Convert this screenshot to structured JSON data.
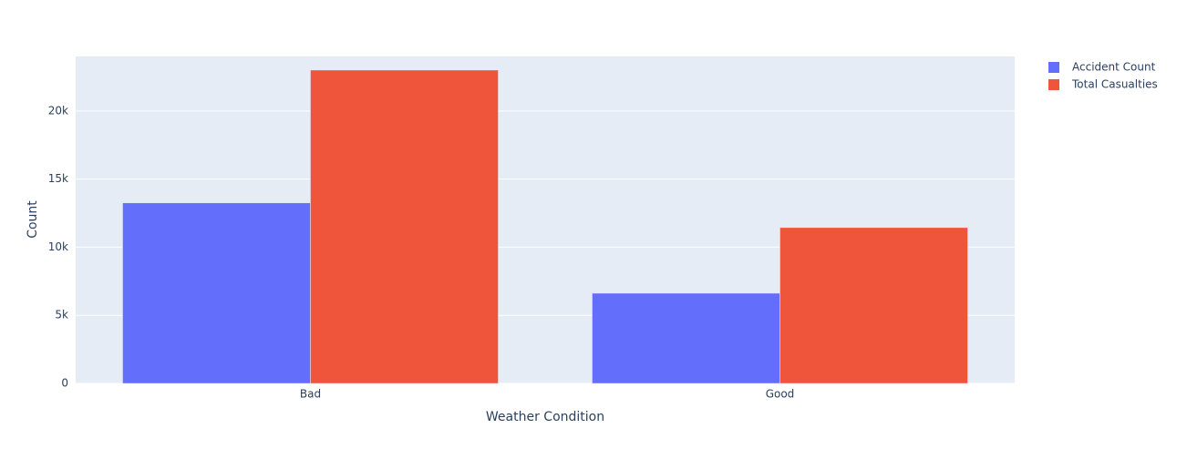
{
  "chart_data": {
    "type": "bar",
    "x_label": "Weather Condition",
    "y_label": "Count",
    "categories": [
      "Bad",
      "Good"
    ],
    "series": [
      {
        "name": "Accident Count",
        "color": "#636efa",
        "values": [
          13250,
          6620
        ]
      },
      {
        "name": "Total Casualties",
        "color": "#ef553b",
        "values": [
          23000,
          11440
        ]
      }
    ],
    "ylim": [
      0,
      24000
    ],
    "yticks": [
      0,
      {
        "value": 5000,
        "label": "5k"
      },
      {
        "value": 10000,
        "label": "10k"
      },
      {
        "value": 15000,
        "label": "15k"
      },
      {
        "value": 20000,
        "label": "20k"
      }
    ],
    "grid": true,
    "legend": "right",
    "plot_background": "#e5ecf6"
  }
}
